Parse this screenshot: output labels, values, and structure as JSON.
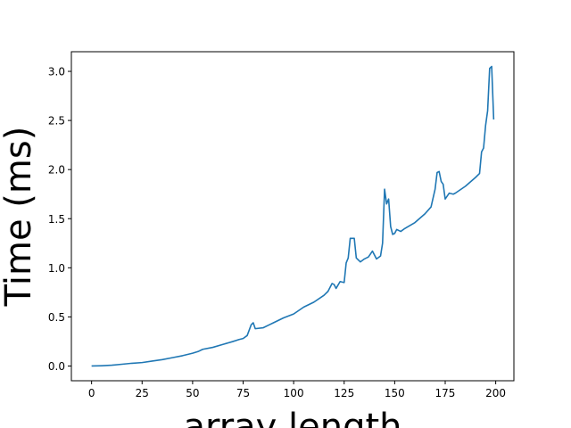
{
  "chart_data": {
    "type": "line",
    "title": "",
    "xlabel": "array length",
    "ylabel": "Time (ms)",
    "xlim": [
      -10,
      209
    ],
    "ylim": [
      -0.15,
      3.2
    ],
    "xticks": [
      0,
      25,
      50,
      75,
      100,
      125,
      150,
      175,
      200
    ],
    "xtick_labels": [
      "0",
      "25",
      "50",
      "75",
      "100",
      "125",
      "150",
      "175",
      "200"
    ],
    "yticks": [
      0.0,
      0.5,
      1.0,
      1.5,
      2.0,
      2.5,
      3.0
    ],
    "ytick_labels": [
      "0.0",
      "0.5",
      "1.0",
      "1.5",
      "2.0",
      "2.5",
      "3.0"
    ],
    "grid": false,
    "line_color": "#1f77b4",
    "series": [
      {
        "points": [
          [
            0,
            0.0
          ],
          [
            5,
            0.003
          ],
          [
            10,
            0.008
          ],
          [
            15,
            0.018
          ],
          [
            20,
            0.028
          ],
          [
            25,
            0.035
          ],
          [
            30,
            0.05
          ],
          [
            35,
            0.065
          ],
          [
            40,
            0.085
          ],
          [
            45,
            0.105
          ],
          [
            50,
            0.13
          ],
          [
            53,
            0.15
          ],
          [
            55,
            0.17
          ],
          [
            60,
            0.19
          ],
          [
            65,
            0.22
          ],
          [
            70,
            0.25
          ],
          [
            73,
            0.27
          ],
          [
            75,
            0.28
          ],
          [
            77,
            0.31
          ],
          [
            79,
            0.42
          ],
          [
            80,
            0.44
          ],
          [
            81,
            0.38
          ],
          [
            85,
            0.39
          ],
          [
            88,
            0.42
          ],
          [
            90,
            0.44
          ],
          [
            95,
            0.49
          ],
          [
            100,
            0.53
          ],
          [
            105,
            0.6
          ],
          [
            110,
            0.65
          ],
          [
            115,
            0.72
          ],
          [
            117,
            0.76
          ],
          [
            119,
            0.84
          ],
          [
            120,
            0.83
          ],
          [
            121,
            0.79
          ],
          [
            123,
            0.86
          ],
          [
            125,
            0.85
          ],
          [
            126,
            1.05
          ],
          [
            127,
            1.1
          ],
          [
            128,
            1.3
          ],
          [
            130,
            1.3
          ],
          [
            131,
            1.1
          ],
          [
            133,
            1.06
          ],
          [
            135,
            1.09
          ],
          [
            137,
            1.11
          ],
          [
            139,
            1.17
          ],
          [
            141,
            1.09
          ],
          [
            143,
            1.12
          ],
          [
            144,
            1.25
          ],
          [
            145,
            1.8
          ],
          [
            146,
            1.65
          ],
          [
            147,
            1.7
          ],
          [
            148,
            1.42
          ],
          [
            149,
            1.34
          ],
          [
            150,
            1.35
          ],
          [
            151,
            1.39
          ],
          [
            153,
            1.37
          ],
          [
            155,
            1.4
          ],
          [
            160,
            1.46
          ],
          [
            165,
            1.55
          ],
          [
            168,
            1.62
          ],
          [
            170,
            1.8
          ],
          [
            171,
            1.97
          ],
          [
            172,
            1.98
          ],
          [
            173,
            1.88
          ],
          [
            174,
            1.85
          ],
          [
            175,
            1.7
          ],
          [
            177,
            1.76
          ],
          [
            179,
            1.75
          ],
          [
            180,
            1.76
          ],
          [
            185,
            1.83
          ],
          [
            190,
            1.92
          ],
          [
            192,
            1.96
          ],
          [
            193,
            2.18
          ],
          [
            194,
            2.22
          ],
          [
            195,
            2.45
          ],
          [
            196,
            2.6
          ],
          [
            197,
            3.03
          ],
          [
            198,
            3.05
          ],
          [
            199,
            2.51
          ]
        ]
      }
    ]
  }
}
